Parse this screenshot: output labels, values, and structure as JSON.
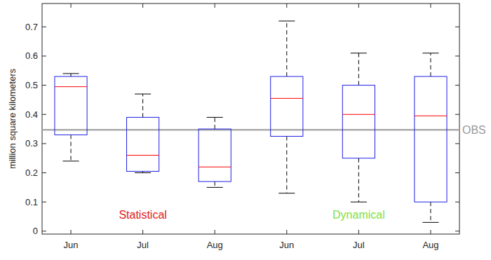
{
  "chart_data": {
    "type": "box",
    "y_label": "million square kilometers",
    "categories": [
      "Jun",
      "Jul",
      "Aug",
      "Jun",
      "Jul",
      "Aug"
    ],
    "low": [
      0.24,
      0.2,
      0.15,
      0.13,
      0.1,
      0.03
    ],
    "q1": [
      0.33,
      0.205,
      0.17,
      0.325,
      0.25,
      0.1
    ],
    "median": [
      0.495,
      0.26,
      0.22,
      0.455,
      0.4,
      0.395
    ],
    "q3": [
      0.53,
      0.39,
      0.35,
      0.53,
      0.5,
      0.53
    ],
    "high": [
      0.54,
      0.47,
      0.39,
      0.72,
      0.61,
      0.61
    ],
    "color": "#2020e0",
    "ylim": [
      -0.01,
      0.78
    ],
    "yticks": [
      0,
      0.1,
      0.2,
      0.3,
      0.4,
      0.5,
      0.6,
      0.7
    ],
    "grid": false,
    "reference_line": {
      "value": 0.347,
      "label": "OBS",
      "color": "#aaaaaa"
    },
    "annotations": [
      {
        "text": "Statistical",
        "color": "#e01a1a"
      },
      {
        "text": "Dynamical",
        "color": "#80e040"
      }
    ]
  }
}
